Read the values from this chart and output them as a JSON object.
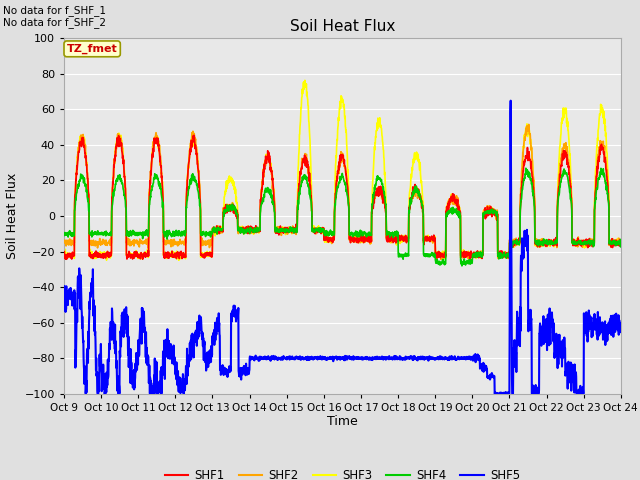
{
  "title": "Soil Heat Flux",
  "ylabel": "Soil Heat Flux",
  "xlabel": "Time",
  "annotation_top": "No data for f_SHF_1\nNo data for f_SHF_2",
  "legend_label": "TZ_fmet",
  "ylim": [
    -100,
    100
  ],
  "series_colors": {
    "SHF1": "#ff0000",
    "SHF2": "#ffa500",
    "SHF3": "#ffff00",
    "SHF4": "#00cc00",
    "SHF5": "#0000ff"
  },
  "legend_entries": [
    "SHF1",
    "SHF2",
    "SHF3",
    "SHF4",
    "SHF5"
  ],
  "bg_color": "#e0e0e0",
  "grid_color": "#ffffff",
  "xtick_labels": [
    "Oct 9",
    "Oct 10",
    "Oct 11",
    "Oct 12",
    "Oct 13",
    "Oct 14",
    "Oct 15",
    "Oct 16",
    "Oct 17",
    "Oct 18",
    "Oct 19",
    "Oct 20",
    "Oct 21",
    "Oct 22",
    "Oct 23",
    "Oct 24"
  ],
  "xtick_positions": [
    0,
    1,
    2,
    3,
    4,
    5,
    6,
    7,
    8,
    9,
    10,
    11,
    12,
    13,
    14,
    15
  ],
  "n_days": 15,
  "pts_per_day": 144
}
